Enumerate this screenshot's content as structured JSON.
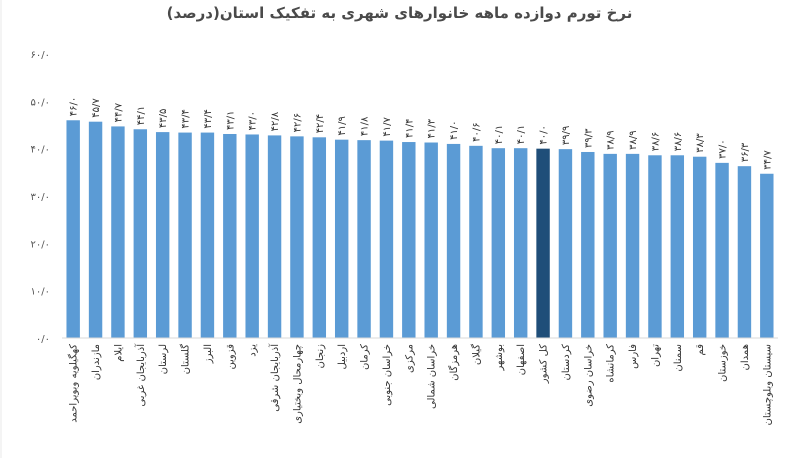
{
  "chart_data": {
    "type": "bar",
    "title": "نرخ تورم دوازده ماهه خانوارهای شهری به تفکیک استان(درصد)",
    "ylim": [
      0,
      60
    ],
    "yticks": [
      0,
      10,
      20,
      30,
      40,
      50,
      60
    ],
    "ytick_labels": [
      "۰/۰",
      "۱۰/۰",
      "۲۰/۰",
      "۳۰/۰",
      "۴۰/۰",
      "۵۰/۰",
      "۶۰/۰"
    ],
    "grid": false,
    "legend": "none",
    "colors": {
      "bar": "#5b9bd5",
      "highlight": "#1f4e79"
    },
    "categories": [
      "کهگیلویه وبویراحمد",
      "مازندران",
      "ایلام",
      "آذربایجان غربی",
      "لرستان",
      "گلستان",
      "البرز",
      "قزوین",
      "یزد",
      "آذربایجان شرقی",
      "چهارمحال وبختیاری",
      "زنجان",
      "اردبیل",
      "کرمان",
      "خراسان جنوبی",
      "مرکزی",
      "خراسان شمالی",
      "هرمزگان",
      "گیلان",
      "بوشهر",
      "اصفهان",
      "کل کشور",
      "کردستان",
      "خراسان رضوی",
      "کرمانشاه",
      "فارس",
      "تهران",
      "سمنان",
      "قم",
      "خوزستان",
      "همدان",
      "سیستان وبلوچستان"
    ],
    "values": [
      46.0,
      45.7,
      44.7,
      44.1,
      43.5,
      43.4,
      43.4,
      43.1,
      43.0,
      42.8,
      42.6,
      42.4,
      41.9,
      41.8,
      41.7,
      41.4,
      41.3,
      41.0,
      40.6,
      40.1,
      40.1,
      40.0,
      39.9,
      39.3,
      38.9,
      38.9,
      38.6,
      38.6,
      38.3,
      37.0,
      36.3,
      34.7
    ],
    "value_labels": [
      "۴۶/۰",
      "۴۵/۷",
      "۴۴/۷",
      "۴۴/۱",
      "۴۳/۵",
      "۴۳/۴",
      "۴۳/۴",
      "۴۳/۱",
      "۴۳/۰",
      "۴۲/۸",
      "۴۲/۶",
      "۴۲/۴",
      "۴۱/۹",
      "۴۱/۸",
      "۴۱/۷",
      "۴۱/۴",
      "۴۱/۳",
      "۴۱/۰",
      "۴۰/۶",
      "۴۰/۱",
      "۴۰/۱",
      "۴۰/۰",
      "۳۹/۹",
      "۳۹/۳",
      "۳۸/۹",
      "۳۸/۹",
      "۳۸/۶",
      "۳۸/۶",
      "۳۸/۳",
      "۳۷/۰",
      "۳۶/۳",
      "۳۴/۷"
    ],
    "highlight_category": "کل کشور"
  }
}
